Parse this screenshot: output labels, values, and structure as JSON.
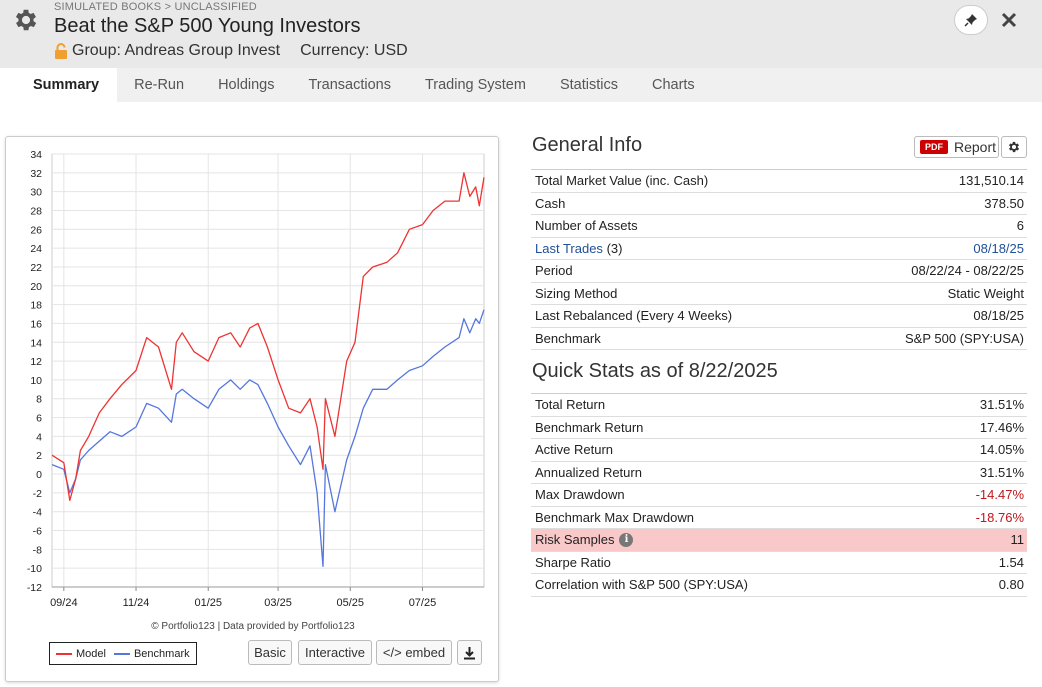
{
  "header": {
    "breadcrumb": "SIMULATED BOOKS > UNCLASSIFIED",
    "title": "Beat the S&P 500 Young Investors",
    "group": "Group: Andreas Group Invest",
    "currency": "Currency: USD",
    "icons": [
      "gear-icon",
      "lock-icon",
      "pin-icon",
      "close-icon"
    ]
  },
  "tabs": [
    "Summary",
    "Re-Run",
    "Holdings",
    "Transactions",
    "Trading System",
    "Statistics",
    "Charts"
  ],
  "chart": {
    "credit": "© Portfolio123 | Data provided by Portfolio123",
    "buttons": {
      "basic": "Basic",
      "interactive": "Interactive",
      "embed": "</> embed"
    },
    "icons": [
      "download-icon"
    ]
  },
  "chart_data": {
    "type": "line",
    "x_ticks": [
      "09/24",
      "11/24",
      "01/25",
      "03/25",
      "05/25",
      "07/25"
    ],
    "y_ticks": [
      34,
      32,
      30,
      28,
      26,
      24,
      22,
      20,
      18,
      16,
      14,
      12,
      10,
      8,
      6,
      4,
      2,
      0,
      -2,
      -4,
      -6,
      -8,
      -10,
      -12
    ],
    "ylim": [
      -12,
      34
    ],
    "grid": true,
    "legend": "bottom-left",
    "colors": {
      "model": "#ee3333",
      "benchmark": "#5577dd"
    },
    "series": [
      {
        "name": "Model",
        "x": [
          "2024-08-22",
          "2024-09-01",
          "2024-09-06",
          "2024-09-11",
          "2024-09-15",
          "2024-09-22",
          "2024-10-01",
          "2024-10-10",
          "2024-10-20",
          "2024-11-01",
          "2024-11-10",
          "2024-11-20",
          "2024-12-01",
          "2024-12-05",
          "2024-12-10",
          "2024-12-20",
          "2025-01-01",
          "2025-01-10",
          "2025-01-20",
          "2025-01-28",
          "2025-02-05",
          "2025-02-12",
          "2025-02-20",
          "2025-03-01",
          "2025-03-10",
          "2025-03-20",
          "2025-03-28",
          "2025-04-03",
          "2025-04-08",
          "2025-04-10",
          "2025-04-18",
          "2025-04-28",
          "2025-05-05",
          "2025-05-12",
          "2025-05-20",
          "2025-06-01",
          "2025-06-10",
          "2025-06-20",
          "2025-07-01",
          "2025-07-10",
          "2025-07-20",
          "2025-08-01",
          "2025-08-05",
          "2025-08-10",
          "2025-08-15",
          "2025-08-18",
          "2025-08-22"
        ],
        "values": [
          2,
          1.2,
          -2.8,
          -0.5,
          2.5,
          4,
          6.5,
          8,
          9.5,
          11,
          14.5,
          13.5,
          9,
          14,
          15,
          13,
          12,
          14.5,
          15,
          13.5,
          15.5,
          16,
          13.5,
          10,
          7,
          6.5,
          8,
          5,
          0.5,
          8,
          4,
          12,
          14,
          21,
          22,
          22.5,
          23.5,
          26,
          26.5,
          28,
          29,
          29,
          32,
          29.5,
          30.5,
          28.5,
          31.51
        ]
      },
      {
        "name": "Benchmark",
        "x": [
          "2024-08-22",
          "2024-09-01",
          "2024-09-06",
          "2024-09-11",
          "2024-09-15",
          "2024-09-22",
          "2024-10-01",
          "2024-10-10",
          "2024-10-20",
          "2024-11-01",
          "2024-11-10",
          "2024-11-20",
          "2024-12-01",
          "2024-12-05",
          "2024-12-10",
          "2024-12-20",
          "2025-01-01",
          "2025-01-10",
          "2025-01-20",
          "2025-01-28",
          "2025-02-05",
          "2025-02-12",
          "2025-02-20",
          "2025-03-01",
          "2025-03-10",
          "2025-03-20",
          "2025-03-28",
          "2025-04-03",
          "2025-04-08",
          "2025-04-10",
          "2025-04-18",
          "2025-04-28",
          "2025-05-05",
          "2025-05-12",
          "2025-05-20",
          "2025-06-01",
          "2025-06-10",
          "2025-06-20",
          "2025-07-01",
          "2025-07-10",
          "2025-07-20",
          "2025-08-01",
          "2025-08-05",
          "2025-08-10",
          "2025-08-15",
          "2025-08-18",
          "2025-08-22"
        ],
        "values": [
          1,
          0.5,
          -2,
          -0.5,
          1.5,
          2.5,
          3.5,
          4.5,
          4,
          5,
          7.5,
          7,
          5.5,
          8.5,
          9,
          8,
          7,
          9,
          10,
          9,
          10,
          9.5,
          7.5,
          5,
          3,
          1,
          3,
          -2,
          -9.8,
          1,
          -4,
          1.5,
          4,
          7,
          9,
          9,
          10,
          11,
          11.5,
          12.5,
          13.5,
          14.5,
          16.5,
          15,
          16.5,
          16,
          17.46
        ]
      }
    ]
  },
  "general_info": {
    "title": "General Info",
    "report_label": "Report",
    "pdf_label": "PDF",
    "rows": [
      {
        "label": "Total Market Value (inc. Cash)",
        "value": "131,510.14"
      },
      {
        "label": "Cash",
        "value": "378.50"
      },
      {
        "label": "Number of Assets",
        "value": "6"
      },
      {
        "label": "Last Trades",
        "suffix": "(3)",
        "value": "08/18/25"
      },
      {
        "label": "Period",
        "value": "08/22/24 - 08/22/25"
      },
      {
        "label": "Sizing Method",
        "value": "Static Weight"
      },
      {
        "label": "Last Rebalanced (Every 4 Weeks)",
        "value": "08/18/25"
      },
      {
        "label": "Benchmark",
        "value": "S&P 500 (SPY:USA)"
      }
    ]
  },
  "quick_stats": {
    "title": "Quick Stats as of 8/22/2025",
    "rows": [
      {
        "label": "Total Return",
        "value": "31.51%"
      },
      {
        "label": "Benchmark Return",
        "value": "17.46%"
      },
      {
        "label": "Active Return",
        "value": "14.05%"
      },
      {
        "label": "Annualized Return",
        "value": "31.51%"
      },
      {
        "label": "Max Drawdown",
        "value": "-14.47%"
      },
      {
        "label": "Benchmark Max Drawdown",
        "value": "-18.76%"
      },
      {
        "label": "Risk Samples",
        "value": "11"
      },
      {
        "label": "Sharpe Ratio",
        "value": "1.54"
      },
      {
        "label": "Correlation with S&P 500 (SPY:USA)",
        "value": "0.80"
      }
    ]
  }
}
